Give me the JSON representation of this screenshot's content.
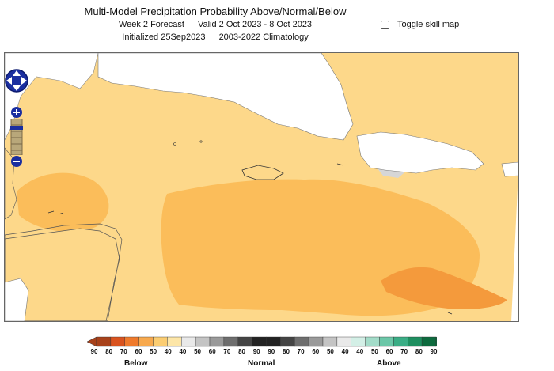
{
  "header": {
    "title": "Multi-Model Precipitation Probability Above/Normal/Below",
    "forecast": "Week 2 Forecast",
    "valid": "Valid 2 Oct 2023 - 8 Oct 2023",
    "initialized": "Initialized 25Sep2023",
    "climatology": "2003-2022 Climatology"
  },
  "controls": {
    "toggle_label": "Toggle skill map",
    "toggle_checked": false
  },
  "map_controls": {
    "pan_icon": "pan-arrows-icon",
    "zoom_in_icon": "plus-icon",
    "zoom_out_icon": "minus-icon"
  },
  "legend": {
    "ticks": [
      "90",
      "80",
      "70",
      "60",
      "50",
      "40",
      "40",
      "50",
      "60",
      "70",
      "80",
      "90",
      "90",
      "80",
      "70",
      "60",
      "50",
      "40",
      "40",
      "50",
      "60",
      "70",
      "80",
      "90"
    ],
    "below_label": "Below",
    "normal_label": "Normal",
    "above_label": "Above",
    "below_colors": [
      "#a8421b",
      "#d9531f",
      "#ef7a2c",
      "#f7a94e",
      "#fbcd72",
      "#fde6a8"
    ],
    "normal_colors": [
      "#e9e9e9",
      "#c4c4c4",
      "#9a9a9a",
      "#6e6e6e",
      "#444444",
      "#222222",
      "#222222",
      "#444444",
      "#6e6e6e",
      "#9a9a9a",
      "#c4c4c4",
      "#e9e9e9"
    ],
    "above_colors": [
      "#d3efe6",
      "#a3dcc9",
      "#6cc7a8",
      "#3aad85",
      "#1f8f60",
      "#0d6b3e"
    ]
  },
  "colors": {
    "land": "#ffffff",
    "prob_40_50_below": "#fdd88a",
    "prob_50_60_below": "#fbbd5a",
    "prob_60_70_below": "#f49a3c",
    "normal_light": "#d6d6d6",
    "border": "#666666"
  }
}
